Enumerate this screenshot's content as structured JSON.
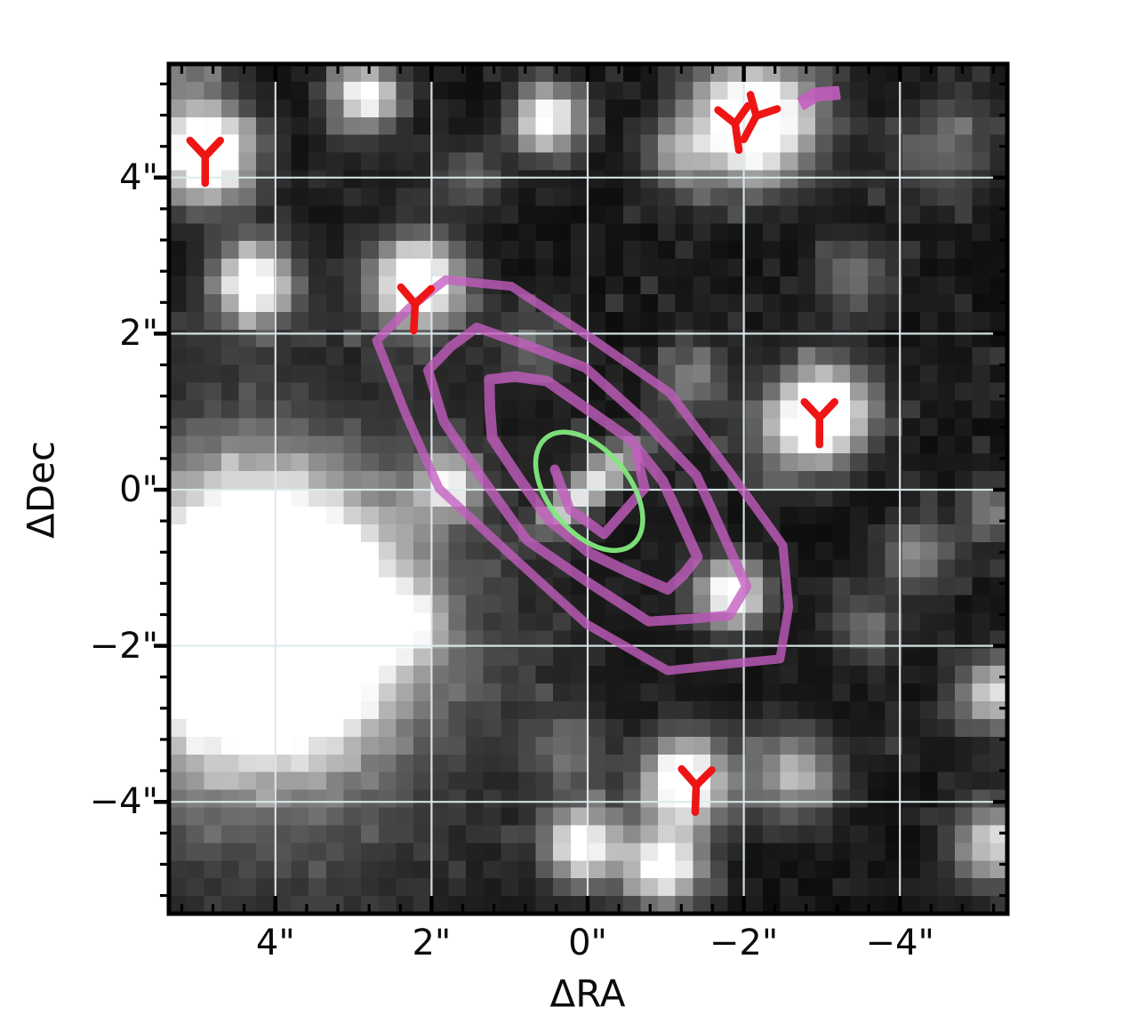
{
  "figure": {
    "xlabel": "ΔRA",
    "ylabel": "ΔDec",
    "background": "#ffffff",
    "frame_color": "#000000",
    "grid_color": "#dcebee",
    "colors": {
      "contour_purple": "#c45ec0",
      "ellipse_green": "#82e97e",
      "marker_red": "#ee1515",
      "tick_color": "#000000"
    }
  },
  "chart_data": {
    "type": "heatmap",
    "title": "",
    "xlabel": "ΔRA",
    "ylabel": "ΔDec",
    "x_tick_values": [
      4,
      2,
      0,
      -2,
      -4
    ],
    "x_tick_labels": [
      "4\"",
      "2\"",
      "0\"",
      "−2\"",
      "−4\""
    ],
    "y_tick_values": [
      4,
      2,
      0,
      -2,
      -4
    ],
    "y_tick_labels": [
      "4\"",
      "2\"",
      "0\"",
      "−2\"",
      "−4\""
    ],
    "xlim_arcsec": [
      5.4,
      -5.4
    ],
    "ylim_arcsec": [
      -5.45,
      5.45
    ],
    "grid": true,
    "minor_tick_step_arcsec": 0.4,
    "description": "Grayscale pixelated sky cutout with white grid, purple interferometric contours, green fitted ellipse, red Y-shaped source markers and a purple arrow.",
    "sources": [
      {
        "ra": 4.9,
        "dec": 4.28,
        "sigma": 0.42,
        "peak": 1.3
      },
      {
        "ra": 5.25,
        "dec": 5.25,
        "sigma": 0.45,
        "peak": 0.35
      },
      {
        "ra": 2.84,
        "dec": 5.04,
        "sigma": 0.3,
        "peak": 0.95
      },
      {
        "ra": 0.52,
        "dec": 4.74,
        "sigma": 0.3,
        "peak": 1.0
      },
      {
        "ra": -2.13,
        "dec": 4.72,
        "sigma": 0.52,
        "peak": 1.35
      },
      {
        "ra": -1.13,
        "dec": 4.29,
        "sigma": 0.3,
        "peak": 0.45
      },
      {
        "ra": -4.55,
        "dec": 4.34,
        "sigma": 0.45,
        "peak": 0.35
      },
      {
        "ra": 4.29,
        "dec": 2.66,
        "sigma": 0.34,
        "peak": 1.1
      },
      {
        "ra": 2.18,
        "dec": 2.66,
        "sigma": 0.4,
        "peak": 1.2
      },
      {
        "ra": 1.5,
        "dec": 4.0,
        "sigma": 0.3,
        "peak": 0.3
      },
      {
        "ra": 0.7,
        "dec": 1.84,
        "sigma": 0.3,
        "peak": 0.32
      },
      {
        "ra": -3.41,
        "dec": 2.75,
        "sigma": 0.35,
        "peak": 0.35
      },
      {
        "ra": -1.3,
        "dec": 1.4,
        "sigma": 0.32,
        "peak": 0.4
      },
      {
        "ra": -3.01,
        "dec": 0.98,
        "sigma": 0.42,
        "peak": 1.25
      },
      {
        "ra": -2.5,
        "dec": 0.6,
        "sigma": 0.4,
        "peak": 0.3
      },
      {
        "ra": 4.17,
        "dec": -1.64,
        "sigma": 1.05,
        "peak": 2.2
      },
      {
        "ra": 4.3,
        "dec": -2.1,
        "sigma": 2.0,
        "peak": 0.4
      },
      {
        "ra": 1.78,
        "dec": 0.07,
        "sigma": 0.28,
        "peak": 0.8
      },
      {
        "ra": 2.29,
        "dec": -1.7,
        "sigma": 0.3,
        "peak": 0.55
      },
      {
        "ra": -1.85,
        "dec": -1.33,
        "sigma": 0.3,
        "peak": 1.05
      },
      {
        "ra": -4.21,
        "dec": -0.84,
        "sigma": 0.3,
        "peak": 0.5
      },
      {
        "ra": -5.18,
        "dec": -0.27,
        "sigma": 0.3,
        "peak": 0.4
      },
      {
        "ra": -5.18,
        "dec": -2.61,
        "sigma": 0.3,
        "peak": 0.8
      },
      {
        "ra": -3.58,
        "dec": -1.76,
        "sigma": 0.3,
        "peak": 0.35
      },
      {
        "ra": -2.67,
        "dec": -3.66,
        "sigma": 0.4,
        "peak": 0.6
      },
      {
        "ra": -1.24,
        "dec": -3.75,
        "sigma": 0.38,
        "peak": 1.15
      },
      {
        "ra": -0.96,
        "dec": -4.83,
        "sigma": 0.36,
        "peak": 1.0
      },
      {
        "ra": 0.07,
        "dec": -4.55,
        "sigma": 0.33,
        "peak": 1.0
      },
      {
        "ra": 0.24,
        "dec": -3.35,
        "sigma": 0.35,
        "peak": 0.3
      },
      {
        "ra": -5.21,
        "dec": -4.55,
        "sigma": 0.35,
        "peak": 0.75
      }
    ],
    "central_streak": {
      "ra": -0.05,
      "dec": 0.05,
      "sigma_major": 0.62,
      "sigma_minor": 0.16,
      "angle_deg": -40,
      "peak": 0.8
    },
    "contours": {
      "purple_ellipses": [
        {
          "ra": -0.02,
          "dec": 0.15,
          "a": 3.27,
          "b": 1.48,
          "rot": 43.5,
          "width": 10
        },
        {
          "ra": 0.01,
          "dec": 0.15,
          "a": 2.51,
          "b": 1.05,
          "rot": 44.0,
          "width": 11
        },
        {
          "ra": -0.02,
          "dec": 0.13,
          "a": 1.75,
          "b": 0.7,
          "rot": 45.0,
          "width": 12
        }
      ],
      "purple_inner_path": [
        [
          -0.63,
          0.44
        ],
        [
          -0.73,
          0.02
        ],
        [
          -0.21,
          -0.57
        ],
        [
          0.23,
          -0.25
        ],
        [
          0.42,
          0.26
        ]
      ],
      "green_ellipse": {
        "ra": -0.02,
        "dec": -0.02,
        "a": 0.88,
        "b": 0.52,
        "rot": 51
      }
    },
    "markers": [
      {
        "ra": 4.9,
        "dec": 4.27,
        "rot": 0
      },
      {
        "ra": -1.89,
        "dec": 4.69,
        "rot": -8
      },
      {
        "ra": -2.16,
        "dec": 4.79,
        "rot": 28
      },
      {
        "ra": 2.21,
        "dec": 2.38,
        "rot": 3
      },
      {
        "ra": -2.97,
        "dec": 0.92,
        "rot": 0
      },
      {
        "ra": -1.39,
        "dec": -3.79,
        "rot": 2
      }
    ],
    "arrow_polygon": [
      [
        -2.71,
        5.01
      ],
      [
        -2.9,
        5.13
      ],
      [
        -3.2,
        5.15
      ],
      [
        -3.22,
        5.02
      ],
      [
        -2.95,
        5.0
      ],
      [
        -2.77,
        4.89
      ]
    ]
  }
}
